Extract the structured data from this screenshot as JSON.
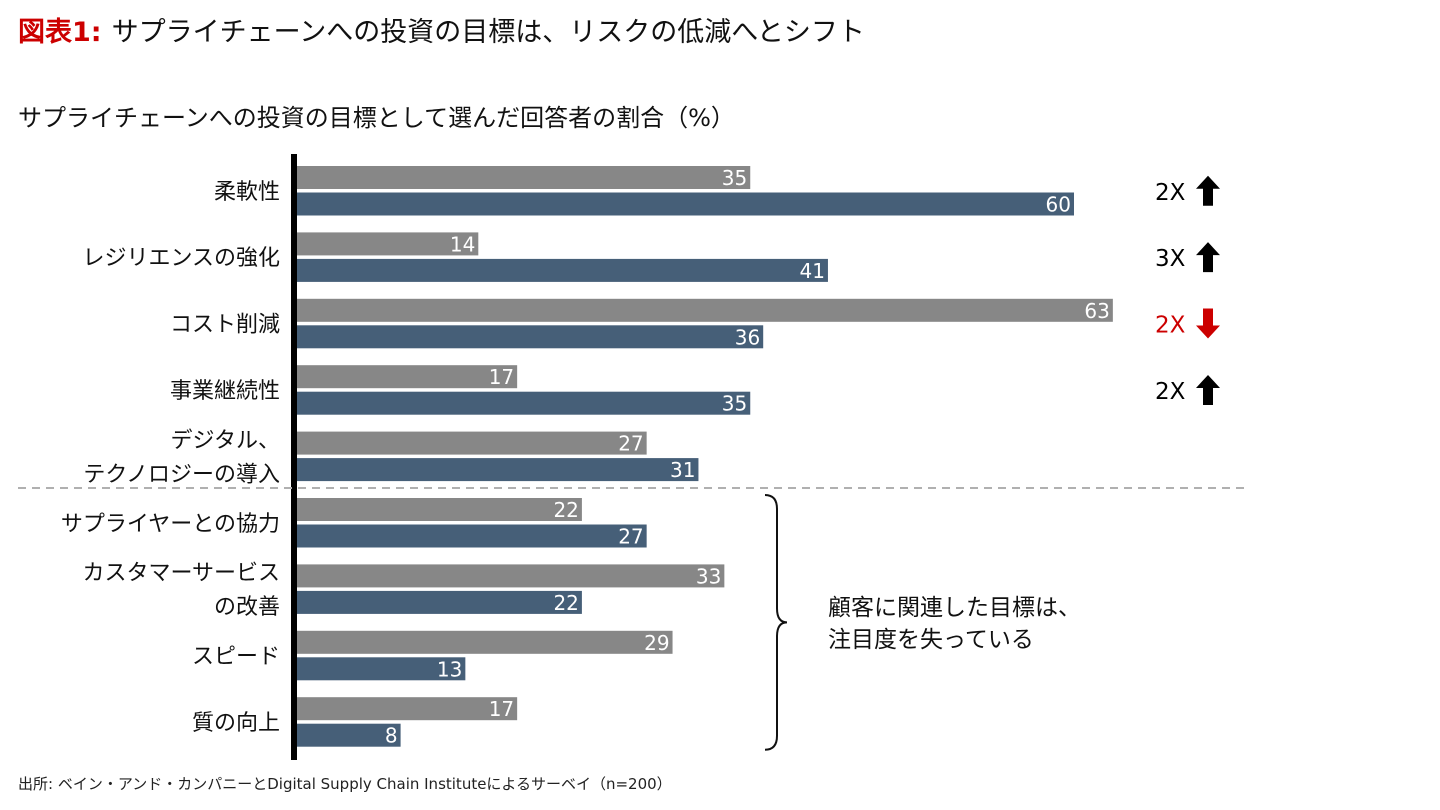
{
  "title_prefix": "図表1:",
  "title": "サプライチェーンへの投資の目標は、リスクの低減へとシフト",
  "subtitle": "サプライチェーンへの投資の目標として選んだ回答者の割合（%）",
  "source": "出所: ベイン・アンド・カンパニーとDigital Supply Chain Instituteによるサーベイ（n=200）",
  "note": [
    "顧客に関連した目標は、",
    "注目度を失っている"
  ],
  "colors": {
    "bar1": "#878787",
    "bar2": "#465f78",
    "axis": "#000000",
    "divider": "#b0b0b0",
    "up_arrow": "#000000",
    "down_arrow": "#cc0000",
    "label_text": "#ffffff"
  },
  "chart_data": {
    "type": "bar",
    "orientation": "horizontal",
    "categories": [
      [
        "柔軟性"
      ],
      [
        "レジリエンスの強化"
      ],
      [
        "コスト削減"
      ],
      [
        "事業継続性"
      ],
      [
        "デジタル、",
        "テクノロジーの導入"
      ],
      [
        "サプライヤーとの協力"
      ],
      [
        "カスタマーサービス",
        "の改善"
      ],
      [
        "スピード"
      ],
      [
        "質の向上"
      ]
    ],
    "series": [
      {
        "values": [
          35,
          14,
          63,
          17,
          27,
          22,
          33,
          29,
          17
        ]
      },
      {
        "values": [
          60,
          41,
          36,
          35,
          31,
          27,
          22,
          13,
          8
        ]
      }
    ],
    "changes": [
      {
        "category_index": 0,
        "label": "2X",
        "direction": "up"
      },
      {
        "category_index": 1,
        "label": "3X",
        "direction": "up"
      },
      {
        "category_index": 2,
        "label": "2X",
        "direction": "down"
      },
      {
        "category_index": 3,
        "label": "2X",
        "direction": "up"
      }
    ],
    "xlim": [
      0,
      63
    ],
    "grid": false,
    "group_divider_after_index": 4,
    "bracket_from_index": 5,
    "bracket_to_index": 8
  }
}
